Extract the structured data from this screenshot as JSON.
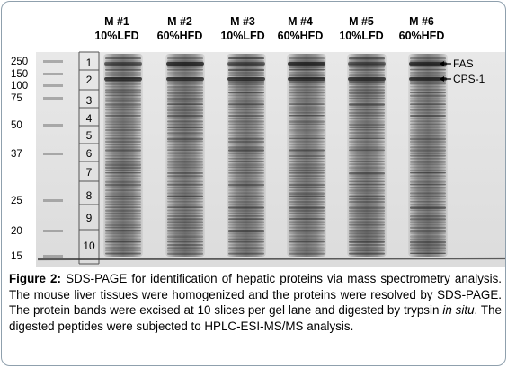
{
  "lanes": [
    {
      "id": "M #1",
      "diet": "10%LFD"
    },
    {
      "id": "M #2",
      "diet": "60%HFD"
    },
    {
      "id": "M #3",
      "diet": "10%LFD"
    },
    {
      "id": "M #4",
      "diet": "60%HFD"
    },
    {
      "id": "M #5",
      "diet": "10%LFD"
    },
    {
      "id": "M #6",
      "diet": "60%HFD"
    }
  ],
  "mw_markers": [
    "250",
    "150",
    "100",
    "75",
    "50",
    "37",
    "25",
    "20",
    "15"
  ],
  "slices": [
    "1",
    "2",
    "3",
    "4",
    "5",
    "6",
    "7",
    "8",
    "9",
    "10"
  ],
  "band_labels": {
    "fas": "FAS",
    "cps1": "CPS-1"
  },
  "caption": {
    "label": "Figure 2:",
    "text_1": " SDS-PAGE for identification of hepatic proteins via mass spectrometry analysis. The mouse liver tissues were homogenized and the proteins were resolved by SDS-PAGE. The protein bands were excised at 10 slices per gel lane and digested by trypsin ",
    "italic": "in situ",
    "text_2": ". The digested peptides were subjected to HPLC-ESI-MS/MS analysis."
  }
}
